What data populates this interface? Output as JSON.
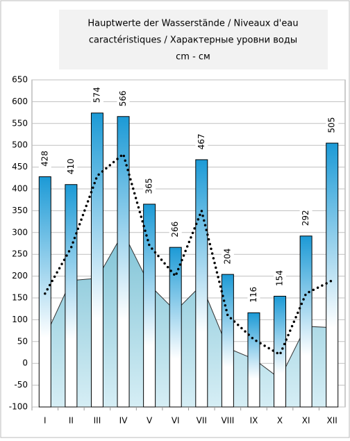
{
  "chart_data": {
    "type": "bar",
    "title": [
      "Hauptwerte der Wasserstände / Niveaux d'eau",
      "caractéristiques / Характерные уровни воды",
      "cm - см"
    ],
    "categories": [
      "I",
      "II",
      "III",
      "IV",
      "V",
      "VI",
      "VII",
      "VIII",
      "IX",
      "X",
      "XI",
      "XII"
    ],
    "series": [
      {
        "type": "bar",
        "color": "#1c9ad6",
        "values": [
          428,
          410,
          574,
          566,
          365,
          266,
          467,
          204,
          116,
          154,
          292,
          505
        ]
      },
      {
        "type": "line",
        "color": "#000000",
        "values": [
          160,
          265,
          430,
          480,
          270,
          200,
          350,
          110,
          55,
          20,
          160,
          190
        ]
      },
      {
        "type": "area",
        "color": "#a9d8e6",
        "values": [
          60,
          190,
          195,
          300,
          180,
          120,
          180,
          35,
          10,
          -35,
          85,
          82
        ]
      }
    ],
    "ylim": [
      -100,
      650
    ],
    "yticks": [
      -100,
      -50,
      0,
      50,
      100,
      150,
      200,
      250,
      300,
      350,
      400,
      450,
      500,
      550,
      600,
      650
    ],
    "grid": true
  }
}
